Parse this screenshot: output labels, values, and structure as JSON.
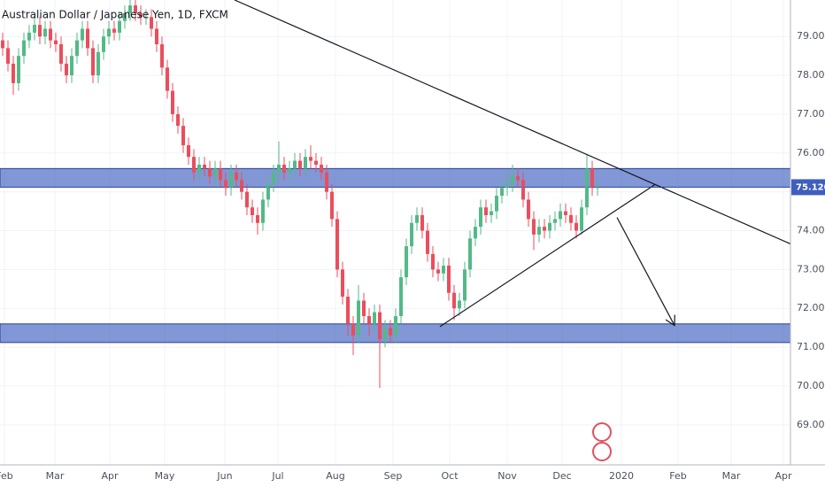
{
  "chart_data": {
    "type": "candlestick",
    "title": "Australian Dollar / Japanese Yen, 1D, FXCM",
    "ylim": [
      67.97,
      79.94
    ],
    "yticks": [
      {
        "value": 69,
        "label": "69.000"
      },
      {
        "value": 70,
        "label": "70.000"
      },
      {
        "value": 71,
        "label": "71.000"
      },
      {
        "value": 72,
        "label": "72.000"
      },
      {
        "value": 73,
        "label": "73.000"
      },
      {
        "value": 74,
        "label": "74.000"
      },
      {
        "value": 75,
        "label": "75.000"
      },
      {
        "value": 76,
        "label": "76.000"
      },
      {
        "value": 77,
        "label": "77.000"
      },
      {
        "value": 78,
        "label": "78.000"
      },
      {
        "value": 79,
        "label": "79.000"
      }
    ],
    "xlim": [
      -0.5,
      148.33
    ],
    "xticks": [
      {
        "value": 0.33,
        "label": "Feb"
      },
      {
        "value": 9.83,
        "label": "Mar"
      },
      {
        "value": 20.17,
        "label": "Apr"
      },
      {
        "value": 30.5,
        "label": "May"
      },
      {
        "value": 41.83,
        "label": "Jun"
      },
      {
        "value": 51.83,
        "label": "Jul"
      },
      {
        "value": 62.67,
        "label": "Aug"
      },
      {
        "value": 73.5,
        "label": "Sep"
      },
      {
        "value": 84.17,
        "label": "Oct"
      },
      {
        "value": 95,
        "label": "Nov"
      },
      {
        "value": 105.33,
        "label": "Dec"
      },
      {
        "value": 116.5,
        "label": "2020"
      },
      {
        "value": 127.17,
        "label": "Feb"
      },
      {
        "value": 137.17,
        "label": "Mar"
      },
      {
        "value": 147,
        "label": "Apr"
      }
    ],
    "grid": true,
    "up_color": "#53b987",
    "down_color": "#eb4d5c",
    "open": [
      78.9,
      78.7,
      78.3,
      77.8,
      78.5,
      78.9,
      79.1,
      79.3,
      79.0,
      79.2,
      78.9,
      78.8,
      78.3,
      78.0,
      78.5,
      78.9,
      79.2,
      78.7,
      78.0,
      78.6,
      79.0,
      79.2,
      79.1,
      79.4,
      79.6,
      79.8,
      79.6,
      79.5,
      79.5,
      79.2,
      78.8,
      78.2,
      77.6,
      77.0,
      76.7,
      76.2,
      75.9,
      75.5,
      75.7,
      75.6,
      75.4,
      75.6,
      75.3,
      75.1,
      75.5,
      75.3,
      75.0,
      74.6,
      74.4,
      74.2,
      74.8,
      75.2,
      75.5,
      75.7,
      75.5,
      75.6,
      75.8,
      75.6,
      75.9,
      75.8,
      75.7,
      75.5,
      75.0,
      74.3,
      73.0,
      72.3,
      71.6,
      71.3,
      72.2,
      71.8,
      71.6,
      71.9,
      71.2,
      71.5,
      71.3,
      71.8,
      72.8,
      73.6,
      74.2,
      74.4,
      74.0,
      73.4,
      73.0,
      72.9,
      73.1,
      72.4,
      72.0,
      72.2,
      73.0,
      73.8,
      74.1,
      74.6,
      74.4,
      74.5,
      74.9,
      75.1,
      75.2,
      75.4,
      75.3,
      74.8,
      74.3,
      73.9,
      74.1,
      74.0,
      74.2,
      74.3,
      74.5,
      74.4,
      74.2,
      74.0,
      74.6,
      75.6,
      75.1
    ],
    "high": [
      79.1,
      78.9,
      78.5,
      78.7,
      79.1,
      79.3,
      79.5,
      79.5,
      79.4,
      79.4,
      79.1,
      79.0,
      78.5,
      78.7,
      79.1,
      79.4,
      79.4,
      78.9,
      78.8,
      79.2,
      79.4,
      79.4,
      79.6,
      79.8,
      79.95,
      79.95,
      79.8,
      79.7,
      79.7,
      79.4,
      79.0,
      78.4,
      77.8,
      77.2,
      76.9,
      76.4,
      76.1,
      75.9,
      75.9,
      75.8,
      75.8,
      75.8,
      75.5,
      75.7,
      75.7,
      75.5,
      75.2,
      74.8,
      74.6,
      75.0,
      75.4,
      75.7,
      76.3,
      75.9,
      75.8,
      76.0,
      76.0,
      76.1,
      76.2,
      76.0,
      75.9,
      75.7,
      75.2,
      74.5,
      73.2,
      72.5,
      71.8,
      72.6,
      72.4,
      72.0,
      72.1,
      72.1,
      71.7,
      71.7,
      72.0,
      73.0,
      73.8,
      74.4,
      74.6,
      74.6,
      74.2,
      73.6,
      73.2,
      73.3,
      73.3,
      72.6,
      72.4,
      73.2,
      74.0,
      74.3,
      74.8,
      74.8,
      74.7,
      75.1,
      75.3,
      75.5,
      75.7,
      75.6,
      75.5,
      75.0,
      74.5,
      74.3,
      74.3,
      74.4,
      74.5,
      74.7,
      74.7,
      74.6,
      74.4,
      74.8,
      75.95,
      75.8,
      75.3
    ],
    "low": [
      78.5,
      78.1,
      77.5,
      77.6,
      78.3,
      78.7,
      78.9,
      78.8,
      78.8,
      78.7,
      78.6,
      78.1,
      77.8,
      77.8,
      78.3,
      78.7,
      78.5,
      77.8,
      77.8,
      78.4,
      78.8,
      78.9,
      78.9,
      79.2,
      79.4,
      79.4,
      79.3,
      79.3,
      79.0,
      78.6,
      78.0,
      77.4,
      76.8,
      76.5,
      76.0,
      75.7,
      75.3,
      75.3,
      75.4,
      75.2,
      75.2,
      75.1,
      74.9,
      74.9,
      75.1,
      74.8,
      74.4,
      74.2,
      73.9,
      74.0,
      74.6,
      75.0,
      75.3,
      75.3,
      75.3,
      75.4,
      75.4,
      75.4,
      75.6,
      75.5,
      75.3,
      74.8,
      74.1,
      72.8,
      72.1,
      71.3,
      70.8,
      71.1,
      71.6,
      71.3,
      71.4,
      69.95,
      71.0,
      71.1,
      71.1,
      71.6,
      72.6,
      73.4,
      74.0,
      73.8,
      73.2,
      72.8,
      72.7,
      72.7,
      72.2,
      71.7,
      71.8,
      72.0,
      72.8,
      73.6,
      73.9,
      74.2,
      74.2,
      74.3,
      74.7,
      74.9,
      75.0,
      75.1,
      74.6,
      74.1,
      73.5,
      73.7,
      73.8,
      73.8,
      74.0,
      74.1,
      74.2,
      74.0,
      73.8,
      73.9,
      74.4,
      74.9,
      74.9
    ],
    "close": [
      78.7,
      78.3,
      77.8,
      78.5,
      78.9,
      79.1,
      79.3,
      79.0,
      79.2,
      78.9,
      78.8,
      78.3,
      78.0,
      78.5,
      78.9,
      79.2,
      78.7,
      78.0,
      78.6,
      79.0,
      79.2,
      79.1,
      79.4,
      79.6,
      79.8,
      79.6,
      79.5,
      79.5,
      79.2,
      78.8,
      78.2,
      77.6,
      77.0,
      76.7,
      76.2,
      75.9,
      75.5,
      75.7,
      75.6,
      75.4,
      75.6,
      75.3,
      75.1,
      75.5,
      75.3,
      75.0,
      74.6,
      74.4,
      74.2,
      74.8,
      75.2,
      75.5,
      75.7,
      75.5,
      75.6,
      75.8,
      75.6,
      75.9,
      75.8,
      75.7,
      75.5,
      75.0,
      74.3,
      73.0,
      72.3,
      71.6,
      71.3,
      72.2,
      71.8,
      71.6,
      71.9,
      71.2,
      71.5,
      71.3,
      71.8,
      72.8,
      73.6,
      74.2,
      74.4,
      74.0,
      73.4,
      73.0,
      72.9,
      73.1,
      72.4,
      72.0,
      72.2,
      73.0,
      73.8,
      74.1,
      74.6,
      74.4,
      74.5,
      74.9,
      75.1,
      75.2,
      75.4,
      75.3,
      74.8,
      74.3,
      73.9,
      74.1,
      74.0,
      74.2,
      74.3,
      74.5,
      74.4,
      74.2,
      74.0,
      74.6,
      75.6,
      75.1,
      75.12
    ],
    "last_price": {
      "value": 75.12,
      "label": "75.120"
    },
    "zones": [
      {
        "from": 75.12,
        "to": 75.6,
        "color": "#3f5fbf"
      },
      {
        "from": 71.12,
        "to": 71.6,
        "color": "#3f5fbf"
      }
    ],
    "lines": [
      {
        "x": [
          43.67,
          148.33
        ],
        "y": [
          79.94,
          73.66
        ]
      },
      {
        "x": [
          82.33,
          122.83
        ],
        "y": [
          71.53,
          75.19
        ]
      },
      {
        "x": [
          115.67,
          126.5
        ],
        "y": [
          74.34,
          71.56
        ],
        "arrow": true
      }
    ]
  }
}
